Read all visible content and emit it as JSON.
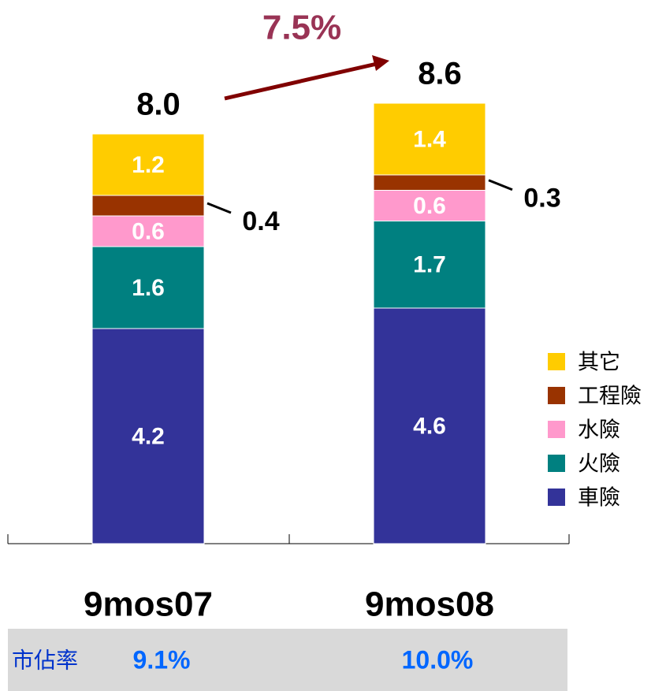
{
  "chart_data": {
    "type": "stacked_bar",
    "categories": [
      "9mos07",
      "9mos08"
    ],
    "series": [
      {
        "name": "車險",
        "color": "#333399",
        "values": [
          4.2,
          4.6
        ]
      },
      {
        "name": "火險",
        "color": "#008080",
        "values": [
          1.6,
          1.7
        ]
      },
      {
        "name": "水險",
        "color": "#ff99cc",
        "values": [
          0.6,
          0.6
        ]
      },
      {
        "name": "工程險",
        "color": "#993300",
        "values": [
          0.4,
          0.3
        ]
      },
      {
        "name": "其它",
        "color": "#ffcc00",
        "values": [
          1.2,
          1.4
        ]
      }
    ],
    "totals": [
      8,
      8.6
    ],
    "total_labels": [
      "8.0",
      "8.6"
    ],
    "annotation": "7.5%",
    "market_share_label": "市佔率",
    "market_share": [
      "9.1%",
      "10.0%"
    ]
  }
}
